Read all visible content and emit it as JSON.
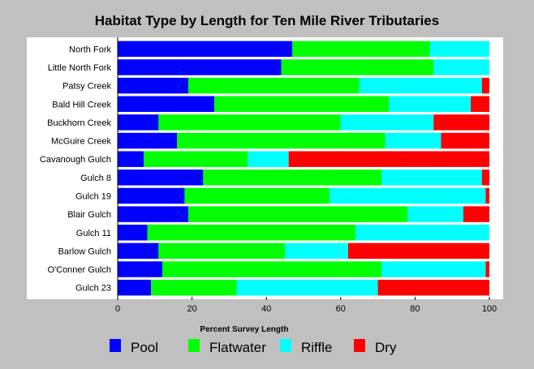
{
  "chart_data": {
    "type": "bar",
    "orientation": "horizontal",
    "stacked": true,
    "title": "Habitat Type by Length for Ten Mile River Tributaries",
    "xlabel": "Percent Survey Length",
    "ylabel": "",
    "xlim": [
      0,
      100
    ],
    "xticks": [
      "0",
      "20",
      "40",
      "60",
      "80",
      "100"
    ],
    "grid": false,
    "legend_position": "bottom",
    "categories": [
      "North Fork",
      "Little North Fork",
      "Patsy Creek",
      "Bald Hill Creek",
      "Buckhorn Creek",
      "McGuire Creek",
      "Cavanough Gulch",
      "Gulch 8",
      "Gulch 19",
      "Blair Gulch",
      "Gulch 11",
      "Barlow Gulch",
      "O'Conner Gulch",
      "Gulch 23"
    ],
    "series": [
      {
        "name": "Pool",
        "color": "#0000ff",
        "values": [
          47,
          44,
          19,
          26,
          11,
          16,
          7,
          23,
          18,
          19,
          8,
          11,
          12,
          9
        ]
      },
      {
        "name": "Flatwater",
        "color": "#00ff00",
        "values": [
          37,
          41,
          46,
          47,
          49,
          56,
          28,
          48,
          39,
          59,
          56,
          34,
          59,
          23
        ]
      },
      {
        "name": "Riffle",
        "color": "#00ffff",
        "values": [
          16,
          15,
          33,
          22,
          25,
          15,
          11,
          27,
          42,
          15,
          36,
          17,
          28,
          38
        ]
      },
      {
        "name": "Dry",
        "color": "#ff0000",
        "values": [
          0,
          0,
          2,
          5,
          15,
          13,
          54,
          2,
          1,
          7,
          0,
          38,
          1,
          30
        ]
      }
    ]
  }
}
